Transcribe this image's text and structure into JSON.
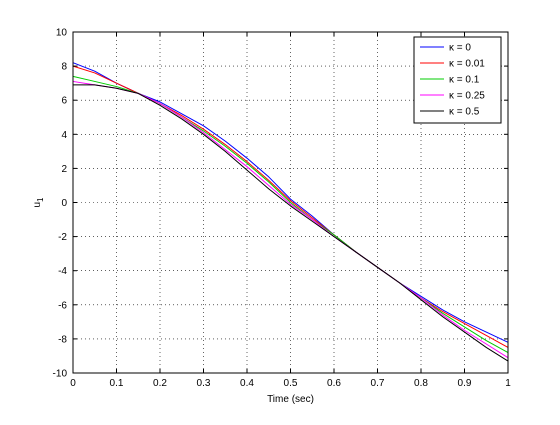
{
  "chart_data": {
    "type": "line",
    "title": "",
    "xlabel": "Time (sec)",
    "ylabel": "u",
    "ylabel_subscript": "1",
    "xlim": [
      0,
      1
    ],
    "ylim": [
      -10,
      10
    ],
    "xticks": [
      0,
      0.1,
      0.2,
      0.3,
      0.4,
      0.5,
      0.6,
      0.7,
      0.8,
      0.9,
      1
    ],
    "xtick_labels": [
      "0",
      "0.1",
      "0.2",
      "0.3",
      "0.4",
      "0.5",
      "0.6",
      "0.7",
      "0.8",
      "0.9",
      "1"
    ],
    "yticks": [
      -10,
      -8,
      -6,
      -4,
      -2,
      0,
      2,
      4,
      6,
      8,
      10
    ],
    "ytick_labels": [
      "-10",
      "-8",
      "-6",
      "-4",
      "-2",
      "0",
      "2",
      "4",
      "6",
      "8",
      "10"
    ],
    "grid": true,
    "legend_position": "top-right",
    "x": [
      0,
      0.05,
      0.1,
      0.15,
      0.2,
      0.25,
      0.3,
      0.35,
      0.4,
      0.45,
      0.5,
      0.55,
      0.6,
      0.65,
      0.7,
      0.75,
      0.8,
      0.85,
      0.9,
      0.95,
      1
    ],
    "series": [
      {
        "name": "κ = 0",
        "color": "#0000ff",
        "values": [
          8.2,
          7.7,
          7.0,
          6.4,
          5.9,
          5.2,
          4.5,
          3.6,
          2.6,
          1.5,
          0.2,
          -0.8,
          -1.9,
          -2.9,
          -3.8,
          -4.7,
          -5.5,
          -6.3,
          -7.0,
          -7.6,
          -8.2
        ]
      },
      {
        "name": "κ = 0.01",
        "color": "#ff0000",
        "values": [
          8.0,
          7.6,
          7.0,
          6.4,
          5.8,
          5.1,
          4.3,
          3.4,
          2.4,
          1.3,
          0.1,
          -0.9,
          -1.9,
          -2.9,
          -3.8,
          -4.7,
          -5.6,
          -6.4,
          -7.1,
          -7.8,
          -8.5
        ]
      },
      {
        "name": "κ = 0.1",
        "color": "#00cc00",
        "values": [
          7.4,
          7.1,
          6.8,
          6.4,
          5.8,
          5.0,
          4.2,
          3.3,
          2.3,
          1.2,
          0.0,
          -1.0,
          -1.9,
          -2.9,
          -3.8,
          -4.7,
          -5.6,
          -6.5,
          -7.3,
          -8.1,
          -8.8
        ]
      },
      {
        "name": "κ = 0.25",
        "color": "#ff00ff",
        "values": [
          7.1,
          6.9,
          6.7,
          6.4,
          5.8,
          5.0,
          4.1,
          3.1,
          2.1,
          1.0,
          -0.1,
          -1.0,
          -2.0,
          -2.9,
          -3.8,
          -4.7,
          -5.6,
          -6.6,
          -7.5,
          -8.3,
          -9.1
        ]
      },
      {
        "name": "κ = 0.5",
        "color": "#000000",
        "values": [
          6.9,
          6.9,
          6.7,
          6.4,
          5.7,
          4.9,
          4.0,
          3.0,
          1.9,
          0.8,
          -0.2,
          -1.1,
          -2.0,
          -2.9,
          -3.8,
          -4.7,
          -5.7,
          -6.7,
          -7.6,
          -8.5,
          -9.3
        ]
      }
    ]
  }
}
